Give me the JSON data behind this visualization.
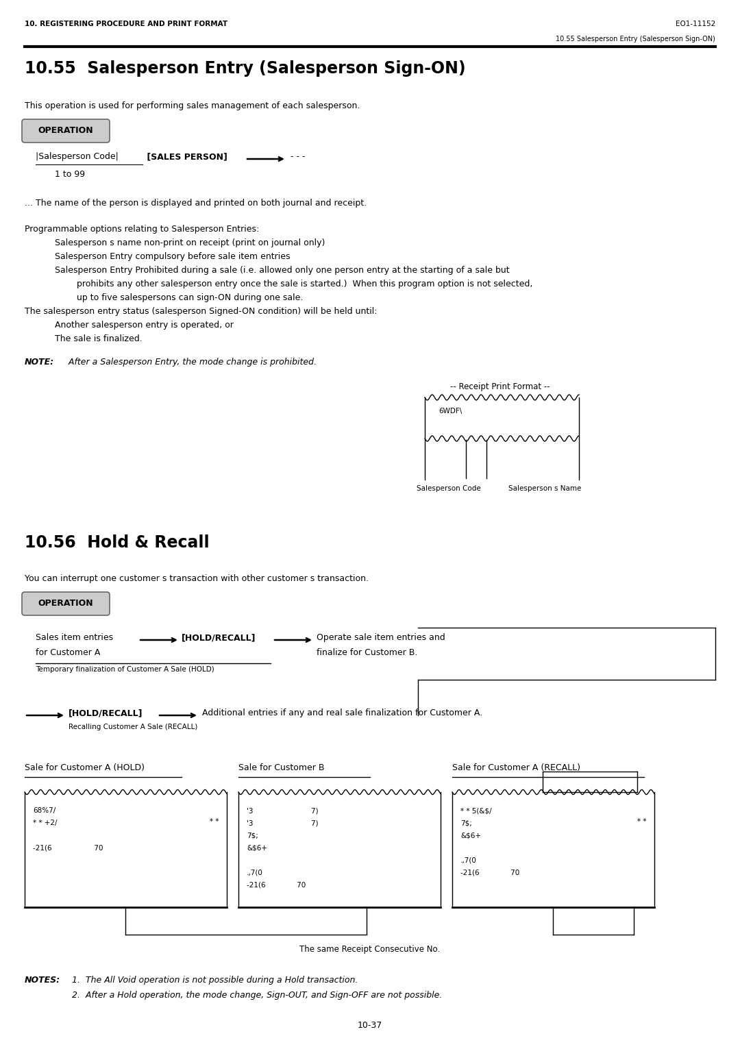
{
  "header_left": "10. REGISTERING PROCEDURE AND PRINT FORMAT",
  "header_right": "EO1-11152",
  "subheader_right": "10.55 Salesperson Entry (Salesperson Sign-ON)",
  "section1_title": "10.55  Salesperson Entry (Salesperson Sign-ON)",
  "section1_desc": "This operation is used for performing sales management of each salesperson.",
  "operation_label": "OPERATION",
  "range_text": "1 to 99",
  "note_text": "... The name of the person is displayed and printed on both journal and receipt.",
  "prog_title": "Programmable options relating to Salesperson Entries:",
  "prog_item1": "Salesperson s name non-print on receipt (print on journal only)",
  "prog_item2": "Salesperson Entry compulsory before sale item entries",
  "prog_item3a": "Salesperson Entry Prohibited during a sale (i.e. allowed only one person entry at the starting of a sale but",
  "prog_item3b": "        prohibits any other salesperson entry once the sale is started.)  When this program option is not selected,",
  "prog_item3c": "        up to five salespersons can sign-ON during one sale.",
  "held_title": "The salesperson entry status (salesperson Signed-ON condition) will be held until:",
  "held_item1": "Another salesperson entry is operated, or",
  "held_item2": "The sale is finalized.",
  "note_bold": "NOTE:",
  "note_rest": "   After a Salesperson Entry, the mode change is prohibited.",
  "receipt_label": "-- Receipt Print Format --",
  "receipt_content": "6WDF\\",
  "salesperson_code_label": "Salesperson Code",
  "salesperson_name_label": "Salesperson s Name",
  "section2_title": "10.56  Hold & Recall",
  "section2_desc": "You can interrupt one customer s transaction with other customer s transaction.",
  "hold_flow1_left": "Sales item entries",
  "hold_flow1_mid": "[HOLD/RECALL]",
  "hold_flow1_right1": "Operate sale item entries and",
  "hold_flow1_right2": "finalize for Customer B.",
  "hold_flow1_left2": "for Customer A",
  "hold_flow1_sub": "Temporary finalization of Customer A Sale (HOLD)",
  "hold_flow2_mid": "[HOLD/RECALL]",
  "hold_flow2_right": "Additional entries if any and real sale finalization for Customer A.",
  "hold_flow2_sub": "Recalling Customer A Sale (RECALL)",
  "receipt_a_hold_title": "Sale for Customer A (HOLD)",
  "receipt_b_title": "Sale for Customer B",
  "receipt_a_recall_title": "Sale for Customer A (RECALL)",
  "same_receipt_note": "The same Receipt Consecutive No.",
  "notes_bold": "NOTES:",
  "notes_item1": "1.  The All Void operation is not possible during a Hold transaction.",
  "notes_item2": "2.  After a Hold operation, the mode change, Sign-OUT, and Sign-OFF are not possible.",
  "page_number": "10-37",
  "bg_color": "#ffffff"
}
